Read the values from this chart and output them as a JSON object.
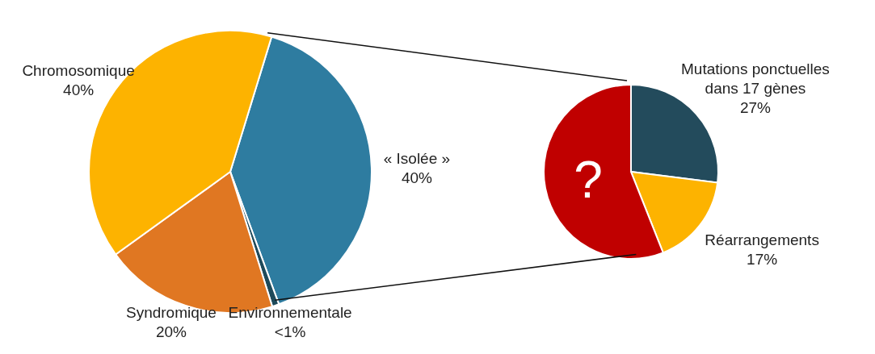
{
  "chart_data": [
    {
      "type": "pie",
      "categories": [
        "« Isolée »",
        "Environnementale",
        "Syndromique",
        "Chromosomique"
      ],
      "values": [
        40,
        0.8,
        20,
        40
      ],
      "colors": [
        "#2e7ca0",
        "#1e4a5a",
        "#e07722",
        "#fdb300"
      ],
      "value_labels": [
        "40%",
        "<1%",
        "20%",
        "40%"
      ]
    },
    {
      "type": "pie",
      "categories": [
        "Mutations ponctuelles dans 17 gènes",
        "Réarrangements",
        "?"
      ],
      "values": [
        27,
        17,
        56
      ],
      "colors": [
        "#234b5c",
        "#fdb300",
        "#c00000"
      ],
      "value_labels": [
        "27%",
        "17%",
        null
      ]
    }
  ]
}
